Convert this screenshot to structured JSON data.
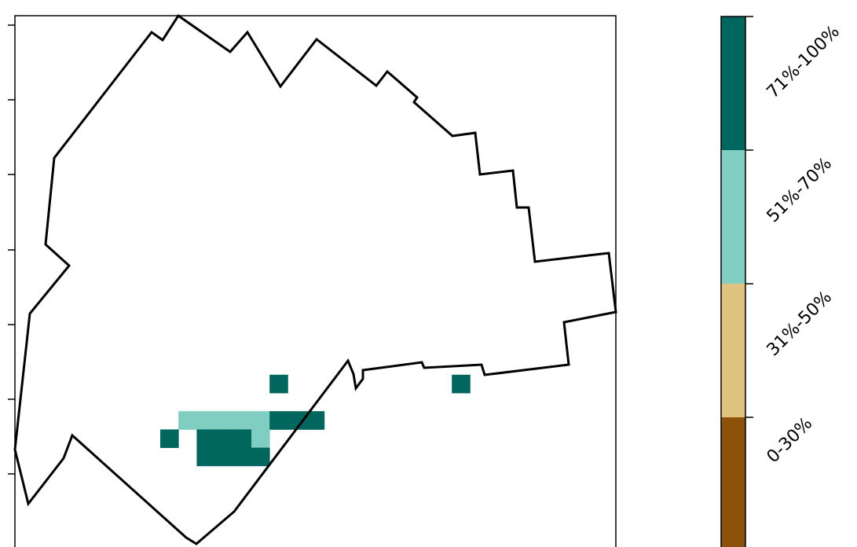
{
  "map": {
    "cell_colors": {
      "light": "#80cdc1",
      "dark": "#01665e"
    },
    "cells": [
      {
        "col": 6,
        "row": 4,
        "class": "dark"
      },
      {
        "col": 16,
        "row": 4,
        "class": "dark"
      },
      {
        "col": 1,
        "row": 6,
        "class": "light"
      },
      {
        "col": 2,
        "row": 6,
        "class": "light"
      },
      {
        "col": 3,
        "row": 6,
        "class": "light"
      },
      {
        "col": 4,
        "row": 6,
        "class": "light"
      },
      {
        "col": 5,
        "row": 6,
        "class": "light"
      },
      {
        "col": 6,
        "row": 6,
        "class": "dark"
      },
      {
        "col": 7,
        "row": 6,
        "class": "dark"
      },
      {
        "col": 8,
        "row": 6,
        "class": "dark"
      },
      {
        "col": 0,
        "row": 7,
        "class": "dark"
      },
      {
        "col": 2,
        "row": 7,
        "class": "dark"
      },
      {
        "col": 3,
        "row": 7,
        "class": "dark"
      },
      {
        "col": 4,
        "row": 7,
        "class": "dark"
      },
      {
        "col": 5,
        "row": 7,
        "class": "light"
      },
      {
        "col": 2,
        "row": 8,
        "class": "dark"
      },
      {
        "col": 3,
        "row": 8,
        "class": "dark"
      },
      {
        "col": 4,
        "row": 8,
        "class": "dark"
      },
      {
        "col": 5,
        "row": 8,
        "class": "dark"
      }
    ]
  },
  "legend": {
    "bins": [
      {
        "label": "71%-100%",
        "color": "#01665e"
      },
      {
        "label": "51%-70%",
        "color": "#80cdc1"
      },
      {
        "label": "31%-50%",
        "color": "#dfc27d"
      },
      {
        "label": "0-30%",
        "color": "#8c510a"
      }
    ]
  }
}
